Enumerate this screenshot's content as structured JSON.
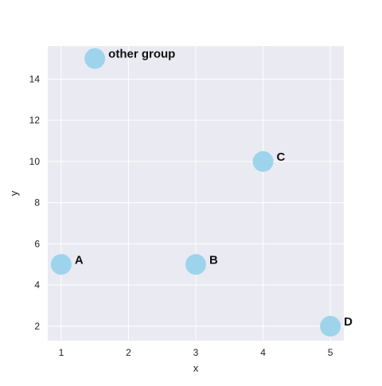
{
  "chart_data": {
    "type": "scatter",
    "title": "",
    "xlabel": "x",
    "ylabel": "y",
    "xlim": [
      0.8,
      5.2
    ],
    "ylim": [
      1.3,
      15.6
    ],
    "x_ticks": [
      1,
      2,
      3,
      4,
      5
    ],
    "y_ticks": [
      2,
      4,
      6,
      8,
      10,
      12,
      14
    ],
    "grid": true,
    "legend": "none",
    "points": [
      {
        "x": 1,
        "y": 5,
        "label": "A"
      },
      {
        "x": 3,
        "y": 5,
        "label": "B"
      },
      {
        "x": 4,
        "y": 10,
        "label": "C"
      },
      {
        "x": 5,
        "y": 2,
        "label": "D"
      },
      {
        "x": 1.5,
        "y": 15,
        "label": "other group"
      }
    ],
    "colors": {
      "marker": "#9dd4ec",
      "plot_background": "#eaeaf2",
      "grid": "#ffffff"
    }
  }
}
